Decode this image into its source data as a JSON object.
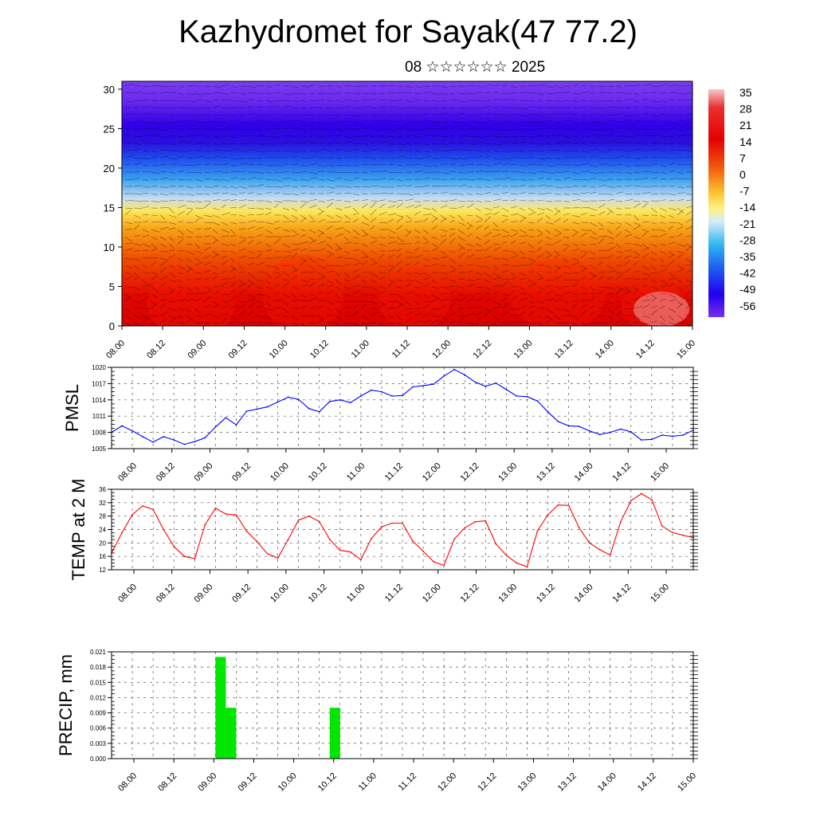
{
  "title": "Kazhydromet for Sayak(47 77.2)",
  "subtitle": "08 ☆☆☆☆☆☆ 2025",
  "colors": {
    "pmsl_line": "#0000ff",
    "temp_line": "#ff0000",
    "precip_bar": "#00e600",
    "colorbar_top": "#f2b6b6",
    "colorbar_mid_high": "#e60000",
    "colorbar_zero": "#ffe14d",
    "colorbar_low": "#33b4f0",
    "colorbar_bottom": "#7a2ee6"
  },
  "time_labels": [
    "08.00",
    "08.12",
    "09.00",
    "09.12",
    "10.00",
    "10.12",
    "11.00",
    "11.12",
    "12.00",
    "12.12",
    "13.00",
    "13.12",
    "14.00",
    "14.12",
    "15.00"
  ],
  "chart_data": [
    {
      "type": "heatmap",
      "name": "cross-section",
      "x_ticks": [
        "08.00",
        "08.12",
        "09.00",
        "09.12",
        "10.00",
        "10.12",
        "11.00",
        "11.12",
        "12.00",
        "12.12",
        "13.00",
        "13.12",
        "14.00",
        "14.12",
        "15.00"
      ],
      "y_ticks": [
        0,
        5,
        10,
        15,
        20,
        25,
        30
      ],
      "ylim": [
        0,
        31
      ],
      "colorbar_labels": [
        35,
        28,
        21,
        14,
        7,
        0,
        -7,
        -14,
        -21,
        -28,
        -35,
        -42,
        -49,
        -56
      ],
      "colorbar_range": [
        -60,
        38
      ],
      "wind_barbs": true
    },
    {
      "type": "line",
      "ylabel": "PMSL",
      "ylim": [
        1005,
        1020
      ],
      "y_ticks": [
        1005,
        1008,
        1011,
        1014,
        1017,
        1020
      ],
      "x_ticks": [
        "08.00",
        "08.12",
        "09.00",
        "09.12",
        "10.00",
        "10.12",
        "11.00",
        "11.12",
        "12.00",
        "12.12",
        "13.00",
        "13.12",
        "14.00",
        "14.12",
        "15.00"
      ],
      "x_range_hours": [
        0,
        168
      ],
      "series": [
        {
          "color": "#0000ff",
          "x": [
            0,
            3,
            6,
            9,
            12,
            15,
            18,
            21,
            24,
            27,
            30,
            33,
            36,
            39,
            42,
            45,
            48,
            51,
            54,
            57,
            60,
            63,
            66,
            69,
            72,
            75,
            78,
            81,
            84,
            87,
            90,
            93,
            96,
            99,
            102,
            105,
            108,
            111,
            114,
            117,
            120,
            123,
            126,
            129,
            132,
            135,
            138,
            141,
            144,
            147,
            150,
            153,
            156,
            159,
            162,
            165,
            168
          ],
          "values": [
            1008,
            1009.2,
            1008.3,
            1007.2,
            1006.2,
            1007.2,
            1006.6,
            1005.8,
            1006.3,
            1007,
            1009,
            1010.7,
            1009.4,
            1011.9,
            1012.3,
            1012.7,
            1013.6,
            1014.5,
            1014.1,
            1012.4,
            1011.8,
            1013.7,
            1014,
            1013.5,
            1014.7,
            1015.8,
            1015.5,
            1014.7,
            1014.8,
            1016.4,
            1016.6,
            1016.9,
            1018.4,
            1019.6,
            1018.6,
            1017.3,
            1016.5,
            1017.1,
            1015.9,
            1014.7,
            1014.6,
            1013.8,
            1011.8,
            1010,
            1009.2,
            1009.1,
            1008.3,
            1007.6,
            1008,
            1008.6,
            1008.1,
            1006.6,
            1006.7,
            1007.5,
            1007.3,
            1007.5,
            1008.4
          ]
        }
      ]
    },
    {
      "type": "line",
      "ylabel": "TEMP at 2 M",
      "ylim": [
        12,
        36
      ],
      "y_ticks": [
        12,
        16,
        20,
        24,
        28,
        32,
        36
      ],
      "x_ticks": [
        "08.00",
        "08.12",
        "09.00",
        "09.12",
        "10.00",
        "10.12",
        "11.00",
        "11.12",
        "12.00",
        "12.12",
        "13.00",
        "13.12",
        "14.00",
        "14.12",
        "15.00"
      ],
      "x_range_hours": [
        0,
        168
      ],
      "series": [
        {
          "color": "#ff0000",
          "x": [
            0,
            3,
            6,
            9,
            12,
            15,
            18,
            21,
            24,
            27,
            30,
            33,
            36,
            39,
            42,
            45,
            48,
            51,
            54,
            57,
            60,
            63,
            66,
            69,
            72,
            75,
            78,
            81,
            84,
            87,
            90,
            93,
            96,
            99,
            102,
            105,
            108,
            111,
            114,
            117,
            120,
            123,
            126,
            129,
            132,
            135,
            138,
            141,
            144,
            147,
            150,
            153,
            156,
            159,
            162,
            165,
            168
          ],
          "values": [
            17,
            23,
            28.5,
            31,
            30,
            24,
            19,
            16,
            15.3,
            25.4,
            30.4,
            28.6,
            28.4,
            23.5,
            20.4,
            16.8,
            15.5,
            21,
            26.8,
            28,
            26.4,
            21,
            17.8,
            17.3,
            15,
            21.3,
            24.8,
            25.9,
            25.9,
            20.5,
            17.5,
            14.4,
            13.3,
            21.2,
            24.5,
            26.3,
            26.6,
            19.7,
            16.3,
            14,
            12.9,
            23.6,
            28.4,
            31.3,
            31.2,
            24.6,
            20,
            18,
            16.4,
            26.3,
            32.6,
            34.7,
            32.9,
            25,
            23.1,
            22.3,
            21.6
          ]
        }
      ]
    },
    {
      "type": "bar",
      "ylabel": "PRECIP, mm",
      "ylim": [
        0,
        0.021
      ],
      "y_ticks": [
        "0.000",
        "0.003",
        "0.006",
        "0.009",
        "0.012",
        "0.015",
        "0.018",
        "0.021"
      ],
      "x_ticks": [
        "08.00",
        "08.12",
        "09.00",
        "09.12",
        "10.00",
        "10.12",
        "11.00",
        "11.12",
        "12.00",
        "12.12",
        "13.00",
        "13.12",
        "14.00",
        "14.12",
        "15.00"
      ],
      "x_range_hours": [
        0,
        168
      ],
      "bar_width_hours": 3,
      "bars": [
        {
          "x_hours": 31.5,
          "value": 0.02
        },
        {
          "x_hours": 34.5,
          "value": 0.01
        },
        {
          "x_hours": 64.5,
          "value": 0.01
        }
      ]
    }
  ]
}
